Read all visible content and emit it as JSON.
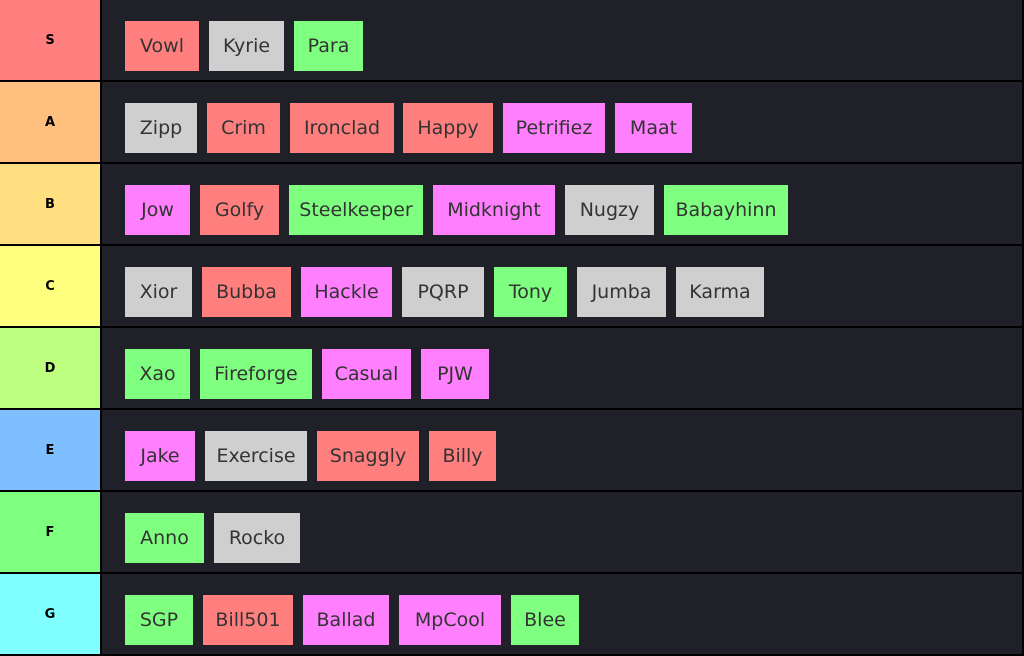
{
  "tiers": [
    {
      "label": "S",
      "color": "#ff7f7f",
      "items": [
        {
          "name": "Vowl",
          "color": "red"
        },
        {
          "name": "Kyrie",
          "color": "gray"
        },
        {
          "name": "Para",
          "color": "green"
        }
      ]
    },
    {
      "label": "A",
      "color": "#ffbf7f",
      "items": [
        {
          "name": "Zipp",
          "color": "gray"
        },
        {
          "name": "Crim",
          "color": "red"
        },
        {
          "name": "Ironclad",
          "color": "red"
        },
        {
          "name": "Happy",
          "color": "red"
        },
        {
          "name": "Petrifiez",
          "color": "pink"
        },
        {
          "name": "Maat",
          "color": "pink"
        }
      ]
    },
    {
      "label": "B",
      "color": "#ffdf7f",
      "items": [
        {
          "name": "Jow",
          "color": "pink"
        },
        {
          "name": "Golfy",
          "color": "red"
        },
        {
          "name": "Steelkeeper",
          "color": "green"
        },
        {
          "name": "Midknight",
          "color": "pink"
        },
        {
          "name": "Nugzy",
          "color": "gray"
        },
        {
          "name": "Babayhinn",
          "color": "green"
        }
      ]
    },
    {
      "label": "C",
      "color": "#ffff7f",
      "items": [
        {
          "name": "Xior",
          "color": "gray"
        },
        {
          "name": "Bubba",
          "color": "red"
        },
        {
          "name": "Hackle",
          "color": "pink"
        },
        {
          "name": "PQRP",
          "color": "gray"
        },
        {
          "name": "Tony",
          "color": "green"
        },
        {
          "name": "Jumba",
          "color": "gray"
        },
        {
          "name": "Karma",
          "color": "gray"
        }
      ]
    },
    {
      "label": "D",
      "color": "#bfff7f",
      "items": [
        {
          "name": "Xao",
          "color": "green"
        },
        {
          "name": "Fireforge",
          "color": "green"
        },
        {
          "name": "Casual",
          "color": "pink"
        },
        {
          "name": "PJW",
          "color": "pink"
        }
      ]
    },
    {
      "label": "E",
      "color": "#7fbfff",
      "items": [
        {
          "name": "Jake",
          "color": "pink"
        },
        {
          "name": "Exercise",
          "color": "gray"
        },
        {
          "name": "Snaggly",
          "color": "red"
        },
        {
          "name": "Billy",
          "color": "red"
        }
      ]
    },
    {
      "label": "F",
      "color": "#7fff7f",
      "items": [
        {
          "name": "Anno",
          "color": "green"
        },
        {
          "name": "Rocko",
          "color": "gray"
        }
      ]
    },
    {
      "label": "G",
      "color": "#7fffff",
      "items": [
        {
          "name": "SGP",
          "color": "green"
        },
        {
          "name": "Bill501",
          "color": "red"
        },
        {
          "name": "Ballad",
          "color": "pink"
        },
        {
          "name": "MpCool",
          "color": "pink"
        },
        {
          "name": "Blee",
          "color": "green"
        }
      ]
    }
  ]
}
